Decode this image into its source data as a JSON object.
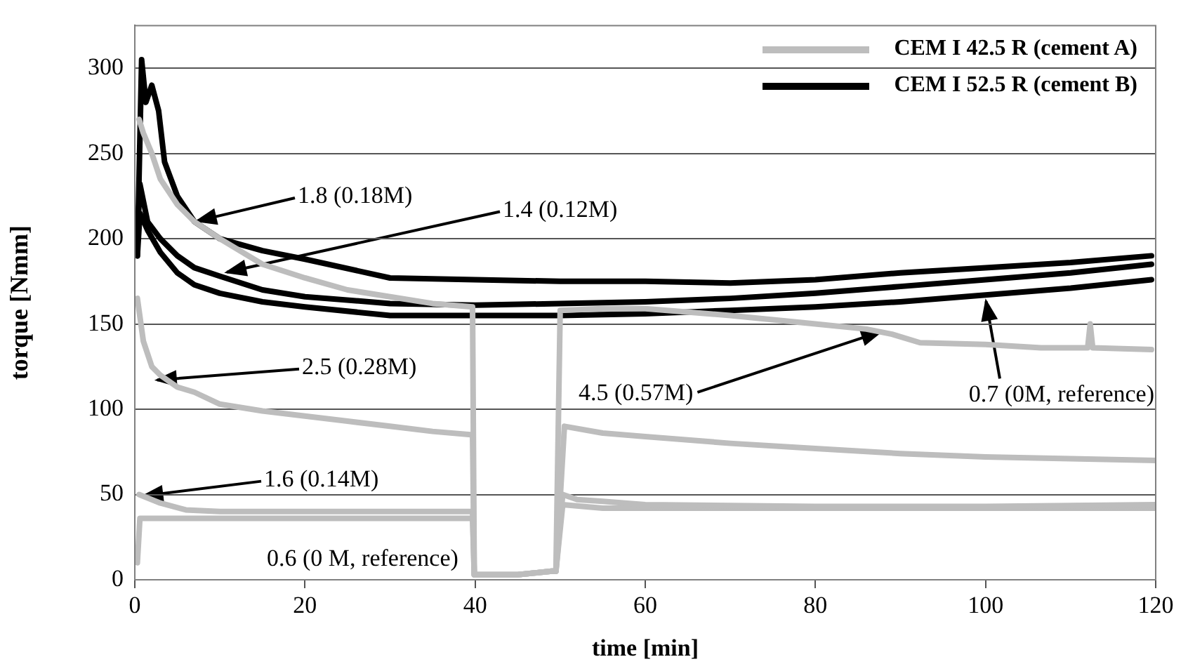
{
  "chart_data": {
    "type": "line",
    "xlabel": "time [min]",
    "ylabel": "torque [Nmm]",
    "xlim": [
      0,
      120
    ],
    "xticks": [
      0,
      20,
      40,
      60,
      80,
      100,
      120
    ],
    "ylim": [
      0,
      325
    ],
    "yticks": [
      0,
      50,
      100,
      150,
      200,
      250,
      300
    ],
    "grid": "y",
    "legend": "top right",
    "marker": "none",
    "line_style": "solid",
    "series": [
      {
        "name": "CEM I 42.5 R (cement A)",
        "color": "#bdbdbd",
        "x": [
          0.5,
          1,
          2,
          3,
          5,
          7,
          10,
          15,
          20,
          25,
          30,
          35,
          39.7,
          39.9,
          45,
          49,
          49.5,
          50,
          55,
          60,
          70,
          80,
          86,
          89,
          92.3,
          100,
          106.5,
          112,
          112.3,
          112.6,
          119.5
        ],
        "values": [
          270,
          262,
          250,
          235,
          220,
          210,
          200,
          185,
          177,
          170,
          166,
          162,
          160,
          3,
          3,
          5,
          5,
          158,
          159,
          159,
          155,
          150,
          147,
          144,
          139,
          138,
          136,
          136,
          150,
          136,
          135
        ]
      },
      {
        "color": "#bdbdbd",
        "x": [
          0.3,
          1,
          2,
          3,
          5,
          7,
          10,
          15,
          20,
          25,
          30,
          35,
          39.7,
          39.9,
          45,
          49,
          49.5,
          50.5,
          55,
          60,
          70,
          80,
          90,
          100,
          110,
          120
        ],
        "values": [
          165,
          140,
          125,
          120,
          113,
          110,
          103,
          99,
          96,
          93,
          90,
          87,
          85,
          3,
          3,
          5,
          5,
          90,
          86,
          84,
          80,
          77,
          74,
          72,
          71,
          70
        ]
      },
      {
        "color": "#bdbdbd",
        "x": [
          0.5,
          1,
          3,
          6,
          10,
          20,
          30,
          39.7,
          39.9,
          45,
          49,
          49.5,
          50.3,
          52,
          55,
          60,
          80,
          100,
          120
        ],
        "values": [
          50,
          49,
          45,
          41,
          40,
          40,
          40,
          40,
          3,
          3,
          5,
          5,
          50,
          47,
          46,
          44,
          43,
          43,
          44
        ]
      },
      {
        "color": "#bdbdbd",
        "x": [
          0.3,
          0.6,
          2,
          10,
          20,
          30,
          39.7,
          39.9,
          45,
          49,
          49.5,
          50.3,
          55,
          60,
          80,
          100,
          120
        ],
        "values": [
          10,
          36,
          36,
          36,
          36,
          36,
          36,
          3,
          3,
          5,
          5,
          44,
          42,
          42,
          42,
          42,
          42
        ]
      },
      {
        "name": "CEM I 52.5 R (cement B)",
        "color": "#000000",
        "x": [
          0.3,
          0.8,
          1.3,
          2,
          2.8,
          3.5,
          5,
          7,
          10,
          15,
          20,
          30,
          40,
          50,
          60,
          70,
          80,
          90,
          100,
          110,
          119.5
        ],
        "values": [
          190,
          305,
          280,
          290,
          275,
          245,
          225,
          210,
          200,
          193,
          188,
          177,
          176,
          175,
          175,
          174,
          176,
          180,
          183,
          186,
          190
        ]
      },
      {
        "color": "#000000",
        "x": [
          0.3,
          0.6,
          1.5,
          3,
          5,
          7,
          10,
          15,
          20,
          30,
          40,
          50,
          60,
          70,
          80,
          90,
          100,
          110,
          119.5
        ],
        "values": [
          200,
          232,
          210,
          200,
          190,
          183,
          178,
          170,
          166,
          162,
          161,
          162,
          163,
          165,
          168,
          172,
          176,
          180,
          185
        ]
      },
      {
        "color": "#000000",
        "x": [
          0.3,
          0.6,
          1.5,
          3,
          5,
          7,
          10,
          15,
          20,
          30,
          40,
          50,
          60,
          70,
          80,
          90,
          100,
          110,
          119.5
        ],
        "values": [
          190,
          215,
          205,
          192,
          180,
          173,
          168,
          163,
          160,
          155,
          155,
          155,
          156,
          158,
          160,
          163,
          167,
          171,
          176
        ]
      }
    ],
    "annotations": [
      {
        "text": "1.8 (0.18M)",
        "x": 7,
        "y": 210
      },
      {
        "text": "1.4 (0.12M)",
        "x": 10.5,
        "y": 180
      },
      {
        "text": "2.5 (0.28M)",
        "x": 2.3,
        "y": 117
      },
      {
        "text": "1.6 (0.14M)",
        "x": 0.7,
        "y": 49
      },
      "0.6 (0 M, reference)",
      {
        "text": "4.5 (0.57M)",
        "x": 88,
        "y": 146
      },
      {
        "text": "0.7 (0M, reference)",
        "x": 100,
        "y": 165
      }
    ]
  }
}
